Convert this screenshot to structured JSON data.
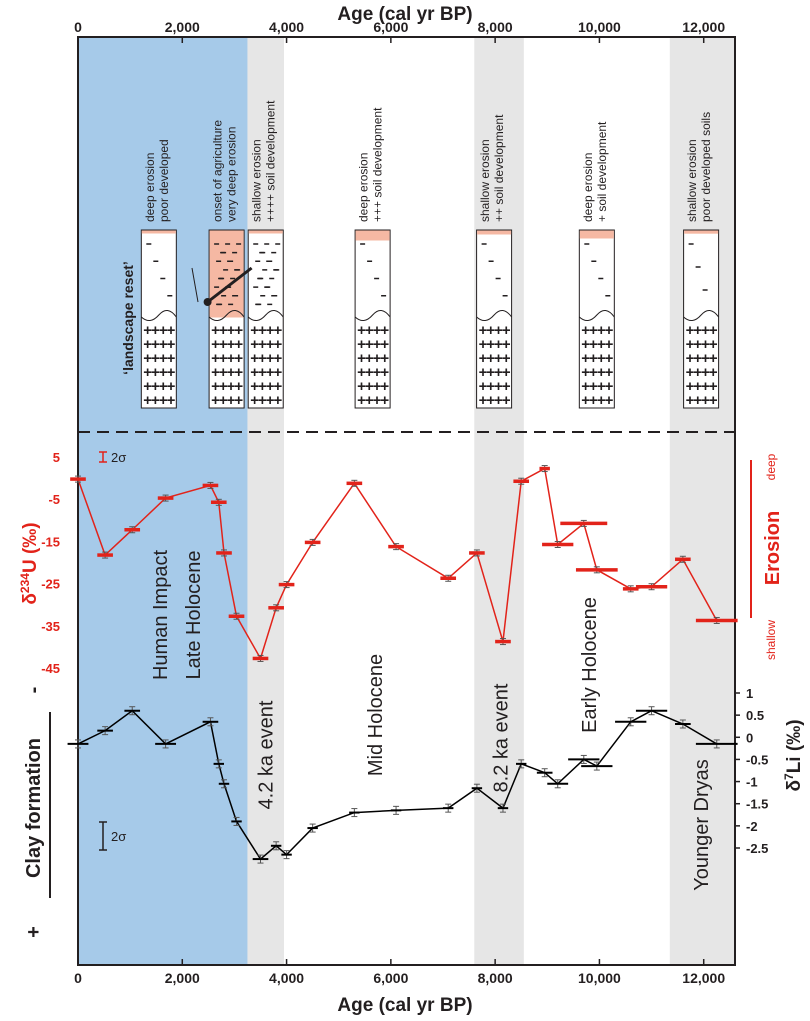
{
  "chart_data": [
    {
      "type": "line",
      "panel": "top",
      "x_title_top": "Age (cal yr BP)",
      "ylabel": "δ²³⁴U (‰)",
      "ylabel_main": "δ",
      "ylabel_sup": "234",
      "ylabel_rest": "U (‰)",
      "x_ticks": [
        0,
        2000,
        4000,
        6000,
        8000,
        10000,
        12000
      ],
      "x_tick_labels": [
        "0",
        "2,000",
        "4,000",
        "6,000",
        "8,000",
        "10,000",
        "12,000"
      ],
      "xlim": [
        0,
        12600
      ],
      "y_ticks": [
        5,
        -5,
        -15,
        -25,
        -35,
        -45
      ],
      "y_tick_labels": [
        "5",
        "-5",
        "-15",
        "-25",
        "-35",
        "-45"
      ],
      "ylim": [
        -46,
        8
      ],
      "error_label": "2σ",
      "erosion_axis": {
        "title": "Erosion",
        "top_label": "deep",
        "bottom_label": "shallow"
      },
      "series": [
        {
          "color": "#e2231a",
          "points": [
            {
              "x": 0,
              "y": 0,
              "xerr": 150
            },
            {
              "x": 520,
              "y": -18,
              "xerr": 150
            },
            {
              "x": 1040,
              "y": -12,
              "xerr": 150
            },
            {
              "x": 1680,
              "y": -4.5,
              "xerr": 150
            },
            {
              "x": 2540,
              "y": -1.5,
              "xerr": 150
            },
            {
              "x": 2700,
              "y": -5.5,
              "xerr": 150
            },
            {
              "x": 2800,
              "y": -17.5,
              "xerr": 150
            },
            {
              "x": 3040,
              "y": -32.5,
              "xerr": 150
            },
            {
              "x": 3500,
              "y": -42.5,
              "xerr": 150
            },
            {
              "x": 3800,
              "y": -30.5,
              "xerr": 150
            },
            {
              "x": 4000,
              "y": -25,
              "xerr": 150
            },
            {
              "x": 4500,
              "y": -15,
              "xerr": 150
            },
            {
              "x": 5300,
              "y": -1,
              "xerr": 150
            },
            {
              "x": 6100,
              "y": -16,
              "xerr": 150
            },
            {
              "x": 7100,
              "y": -23.5,
              "xerr": 150
            },
            {
              "x": 7650,
              "y": -17.5,
              "xerr": 150
            },
            {
              "x": 8150,
              "y": -38.5,
              "xerr": 150
            },
            {
              "x": 8500,
              "y": -0.5,
              "xerr": 150
            },
            {
              "x": 8950,
              "y": 2.5,
              "xerr": 100
            },
            {
              "x": 9200,
              "y": -15.5,
              "xerr": 300
            },
            {
              "x": 9700,
              "y": -10.5,
              "xerr": 450
            },
            {
              "x": 9950,
              "y": -21.5,
              "xerr": 400
            },
            {
              "x": 10600,
              "y": -26,
              "xerr": 150
            },
            {
              "x": 11000,
              "y": -25.5,
              "xerr": 300
            },
            {
              "x": 11600,
              "y": -19,
              "xerr": 150
            },
            {
              "x": 12250,
              "y": -33.5,
              "xerr": 400
            }
          ]
        }
      ]
    },
    {
      "type": "line",
      "panel": "bottom",
      "xlabel": "Age (cal yr BP)",
      "ylabel": "δ⁷Li (‰)",
      "ylabel_main": "δ",
      "ylabel_sup": "7",
      "ylabel_rest": "Li (‰)",
      "x_ticks": [
        0,
        2000,
        4000,
        6000,
        8000,
        10000,
        12000
      ],
      "x_tick_labels": [
        "0",
        "2,000",
        "4,000",
        "6,000",
        "8,000",
        "10,000",
        "12,000"
      ],
      "xlim": [
        0,
        12600
      ],
      "y_ticks": [
        1,
        0.5,
        0,
        -0.5,
        -1,
        -1.5,
        -2,
        -2.5
      ],
      "y_tick_labels": [
        "1",
        "0.5",
        "0",
        "-0.5",
        "-1",
        "-1.5",
        "-2",
        "-2.5"
      ],
      "ylim": [
        -2.85,
        1.15
      ],
      "error_label": "2σ",
      "clay_axis": {
        "title": "Clay formation",
        "top_symbol": "-",
        "bottom_symbol": "+"
      },
      "series": [
        {
          "color": "#000000",
          "points": [
            {
              "x": 0,
              "y": -0.15,
              "xerr": 200
            },
            {
              "x": 520,
              "y": 0.15,
              "xerr": 150
            },
            {
              "x": 1040,
              "y": 0.6,
              "xerr": 150
            },
            {
              "x": 1680,
              "y": -0.15,
              "xerr": 200
            },
            {
              "x": 2540,
              "y": 0.35,
              "xerr": 150
            },
            {
              "x": 2700,
              "y": -0.6,
              "xerr": 100
            },
            {
              "x": 2800,
              "y": -1.05,
              "xerr": 100
            },
            {
              "x": 3040,
              "y": -1.9,
              "xerr": 100
            },
            {
              "x": 3500,
              "y": -2.75,
              "xerr": 150
            },
            {
              "x": 3800,
              "y": -2.45,
              "xerr": 100
            },
            {
              "x": 4000,
              "y": -2.65,
              "xerr": 100
            },
            {
              "x": 4500,
              "y": -2.05,
              "xerr": 100
            },
            {
              "x": 5300,
              "y": -1.7,
              "xerr": 100
            },
            {
              "x": 6100,
              "y": -1.65,
              "xerr": 100
            },
            {
              "x": 7100,
              "y": -1.6,
              "xerr": 100
            },
            {
              "x": 7650,
              "y": -1.15,
              "xerr": 100
            },
            {
              "x": 8150,
              "y": -1.6,
              "xerr": 100
            },
            {
              "x": 8500,
              "y": -0.6,
              "xerr": 100
            },
            {
              "x": 8950,
              "y": -0.8,
              "xerr": 150
            },
            {
              "x": 9200,
              "y": -1.05,
              "xerr": 200
            },
            {
              "x": 9700,
              "y": -0.5,
              "xerr": 300
            },
            {
              "x": 9950,
              "y": -0.65,
              "xerr": 300
            },
            {
              "x": 10600,
              "y": 0.35,
              "xerr": 300
            },
            {
              "x": 11000,
              "y": 0.6,
              "xerr": 300
            },
            {
              "x": 11600,
              "y": 0.3,
              "xerr": 150
            },
            {
              "x": 12250,
              "y": -0.15,
              "xerr": 400
            }
          ]
        }
      ]
    }
  ],
  "shaded_periods": [
    {
      "name": "Human Impact / Late Holocene",
      "from": 0,
      "to": 3250,
      "color": "#a6cae9"
    },
    {
      "name": "4.2 ka event",
      "from": 3250,
      "to": 3950,
      "color": "#e6e6e6"
    },
    {
      "name": "8.2 ka event",
      "from": 7600,
      "to": 8550,
      "color": "#e6e6e6"
    },
    {
      "name": "Younger Dryas",
      "from": 11350,
      "to": 12600,
      "color": "#e6e6e6"
    }
  ],
  "period_labels": [
    {
      "text": "Human Impact",
      "x": 1300,
      "y": -36
    },
    {
      "text": "Late Holocene",
      "x": 1800,
      "y": -36
    },
    {
      "text": "4.2 ka event",
      "x": 3600,
      "y": -36
    },
    {
      "text": "Mid Holocene",
      "x": 5700,
      "y": -36
    },
    {
      "text": "8.2 ka event",
      "x": 8100,
      "y": -36
    },
    {
      "text": "Early Holocene",
      "x": 9800,
      "y": -36
    },
    {
      "text": "Younger Dryas",
      "x": 11950,
      "y": -36
    }
  ],
  "profile_captions": [
    {
      "x": 1550,
      "lines": [
        "deep erosion",
        "poor developed"
      ]
    },
    {
      "x": 2850,
      "lines": [
        "onset of agriculture",
        "very deep erosion"
      ]
    },
    {
      "x": 3600,
      "lines": [
        "shallow erosion",
        "++++ soil development"
      ]
    },
    {
      "x": 5650,
      "lines": [
        "deep erosion",
        "+++ soil development"
      ]
    },
    {
      "x": 7980,
      "lines": [
        "shallow erosion",
        "++ soil development"
      ]
    },
    {
      "x": 9950,
      "lines": [
        "deep erosion",
        "+ soil development"
      ]
    },
    {
      "x": 11950,
      "lines": [
        "shallow erosion",
        "poor developed soils"
      ]
    }
  ],
  "profiles": [
    {
      "x": 1550,
      "topsoil": 0.05,
      "dash_rows": 4,
      "dense": false
    },
    {
      "x": 2850,
      "topsoil": 1.0,
      "dash_rows": 8,
      "dense": true
    },
    {
      "x": 3600,
      "topsoil": 0.0,
      "dash_rows": 8,
      "dense": true
    },
    {
      "x": 5650,
      "topsoil": 0.25,
      "dash_rows": 4,
      "dense": false
    },
    {
      "x": 7980,
      "topsoil": 0.1,
      "dash_rows": 4,
      "dense": false
    },
    {
      "x": 9950,
      "topsoil": 0.2,
      "dash_rows": 4,
      "dense": false
    },
    {
      "x": 11950,
      "topsoil": 0.08,
      "dash_rows": 3,
      "dense": false
    }
  ],
  "landscape_reset_label": "‘landscape reset’",
  "colors": {
    "u_series": "#e2231a",
    "li_series": "#000000",
    "topsoil": "#f5b8a3",
    "blue_band": "#a6cae9",
    "grey_band": "#e6e6e6"
  }
}
